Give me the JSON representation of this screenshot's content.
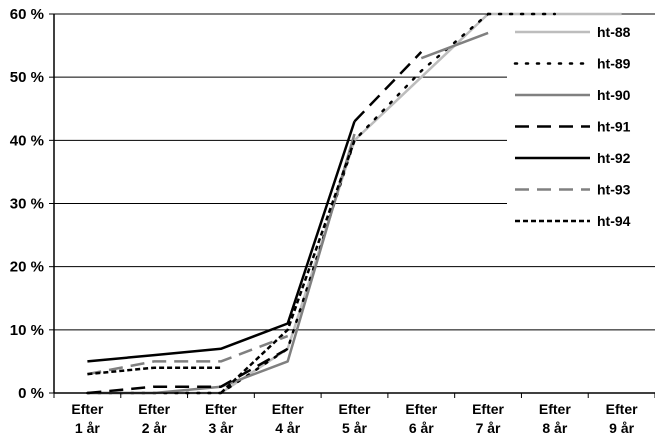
{
  "chart_data": {
    "type": "line",
    "categories": [
      [
        "Efter",
        "1 år"
      ],
      [
        "Efter",
        "2 år"
      ],
      [
        "Efter",
        "3 år"
      ],
      [
        "Efter",
        "4 år"
      ],
      [
        "Efter",
        "5 år"
      ],
      [
        "Efter",
        "6 år"
      ],
      [
        "Efter",
        "7 år"
      ],
      [
        "Efter",
        "8 år"
      ],
      [
        "Efter",
        "9 år"
      ]
    ],
    "ylim": [
      0,
      60
    ],
    "y_ticks": [
      0,
      10,
      20,
      30,
      40,
      50,
      60
    ],
    "y_tick_labels": [
      "0 %",
      "10 %",
      "20 %",
      "30 %",
      "40 %",
      "50 %",
      "60 %"
    ],
    "grid": "horizontal",
    "legend_position": "right",
    "series": [
      {
        "name": "ht-88",
        "color": "#bdbdbd",
        "dash": "solid",
        "values": [
          null,
          null,
          null,
          null,
          null,
          null,
          60,
          60,
          60
        ]
      },
      {
        "name": "ht-89",
        "color": "#000000",
        "dash": "dotted",
        "values": [
          null,
          null,
          null,
          null,
          null,
          null,
          60,
          60,
          null
        ]
      },
      {
        "name": "ht-90",
        "color": "#808080",
        "dash": "solid",
        "values": [
          null,
          null,
          null,
          null,
          null,
          53,
          57,
          null,
          null
        ]
      },
      {
        "name": "ht-91",
        "color": "#000000",
        "dash": "dashed",
        "values": [
          null,
          null,
          null,
          null,
          43,
          54,
          null,
          null,
          null
        ]
      },
      {
        "name": "ht-92",
        "color": "#000000",
        "dash": "solid",
        "values": [
          5,
          6,
          7,
          11,
          43,
          null,
          null,
          null,
          null
        ]
      },
      {
        "name": "ht-93",
        "color": "#808080",
        "dash": "dashed",
        "values": [
          3,
          5,
          5,
          9,
          null,
          null,
          null,
          null,
          null
        ]
      },
      {
        "name": "ht-94",
        "color": "#000000",
        "dash": "shortdash",
        "values": [
          3,
          4,
          4,
          null,
          null,
          null,
          null,
          null,
          null
        ]
      }
    ],
    "rising_lines": [
      {
        "color": "#bdbdbd",
        "dash": "solid",
        "values": [
          0,
          0,
          0,
          7,
          40,
          50,
          60,
          null,
          null
        ]
      },
      {
        "color": "#000000",
        "dash": "dotted",
        "values": [
          0,
          0,
          0,
          7,
          40,
          51,
          60,
          null,
          null
        ]
      },
      {
        "color": "#808080",
        "dash": "solid",
        "values": [
          0,
          0,
          1,
          5,
          41,
          null,
          null,
          null,
          null
        ]
      },
      {
        "color": "#000000",
        "dash": "dashed",
        "values": [
          0,
          1,
          1,
          7,
          null,
          null,
          null,
          null,
          null
        ]
      },
      {
        "color": "#000000",
        "dash": "shortdash",
        "values": [
          null,
          null,
          0,
          10,
          40,
          null,
          null,
          null,
          null
        ]
      }
    ]
  }
}
